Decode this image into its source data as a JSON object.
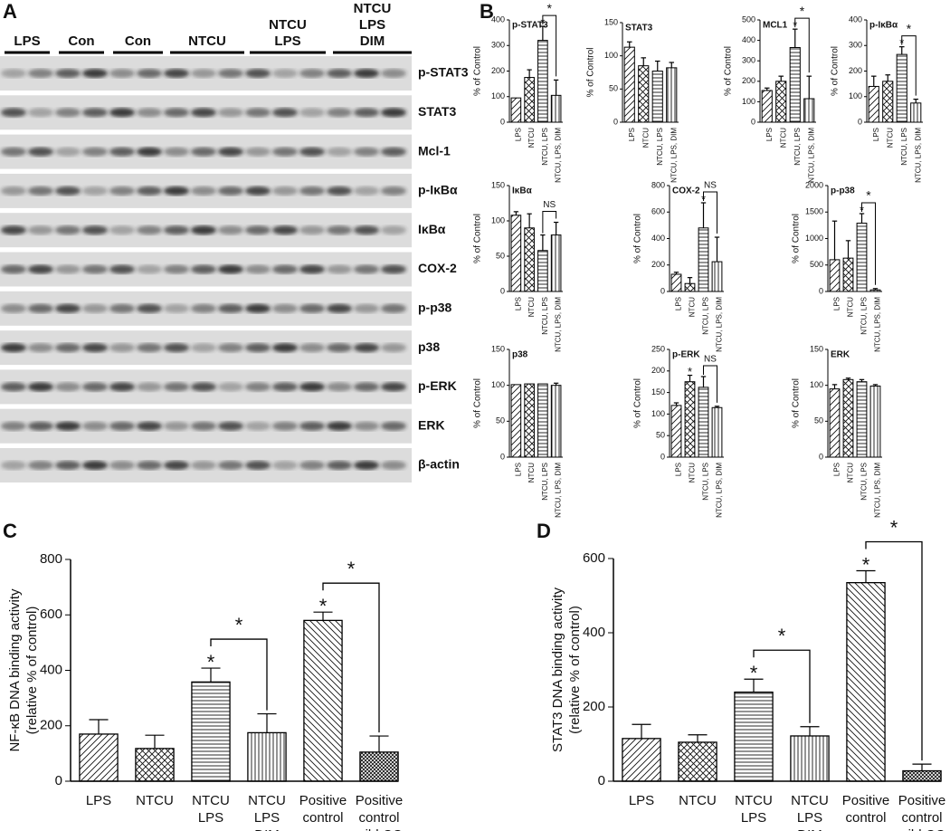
{
  "panel_labels": [
    "A",
    "B",
    "C",
    "D"
  ],
  "blot": {
    "groups": [
      [
        "LPS"
      ],
      [
        "Con"
      ],
      [
        "Con"
      ],
      [
        "NTCU"
      ],
      [
        "NTCU",
        "LPS"
      ],
      [
        "NTCU",
        "LPS",
        "DIM"
      ]
    ],
    "rows": [
      "p-STAT3",
      "STAT3",
      "Mcl-1",
      "p-IκBα",
      "IκBα",
      "COX-2",
      "p-p38",
      "p38",
      "p-ERK",
      "ERK",
      "β-actin"
    ]
  },
  "chart_data": [
    {
      "type": "bar",
      "title": "p-STAT3",
      "ylabel": "% of Control",
      "categories": [
        "LPS",
        "NTCU",
        "NTCU, LPS",
        "NTCU, LPS, DIM"
      ],
      "patterns": [
        "diagonal",
        "crosshatch",
        "horizontal",
        "vertical"
      ],
      "values": [
        95,
        175,
        320,
        105
      ],
      "errors": [
        null,
        30,
        55,
        60
      ],
      "star_labels": [
        null,
        null,
        "*",
        null
      ],
      "brackets": [
        {
          "from": 2,
          "to": 3,
          "label": "*"
        }
      ],
      "ylim": [
        0,
        400
      ],
      "yticks": [
        0,
        100,
        200,
        300,
        400
      ]
    },
    {
      "type": "bar",
      "title": "STAT3",
      "ylabel": "% of Control",
      "categories": [
        "LPS",
        "NTCU",
        "NTCU, LPS",
        "NTCU, LPS, DIM"
      ],
      "patterns": [
        "diagonal",
        "crosshatch",
        "horizontal",
        "vertical"
      ],
      "values": [
        113,
        85,
        77,
        82
      ],
      "errors": [
        8,
        12,
        15,
        8
      ],
      "star_labels": [
        null,
        null,
        null,
        null
      ],
      "brackets": [],
      "ylim": [
        0,
        150
      ],
      "yticks": [
        0,
        50,
        100,
        150
      ]
    },
    {
      "type": "bar",
      "title": "MCL1",
      "ylabel": "% of Control",
      "categories": [
        "LPS",
        "NTCU",
        "NTCU, LPS",
        "NTCU, LPS, DIM"
      ],
      "patterns": [
        "diagonal",
        "crosshatch",
        "horizontal",
        "vertical"
      ],
      "values": [
        155,
        200,
        365,
        115
      ],
      "errors": [
        12,
        25,
        90,
        110
      ],
      "star_labels": [
        null,
        null,
        "*",
        null
      ],
      "brackets": [
        {
          "from": 2,
          "to": 3,
          "label": "*"
        }
      ],
      "ylim": [
        0,
        500
      ],
      "yticks": [
        0,
        100,
        200,
        300,
        400,
        500
      ]
    },
    {
      "type": "bar",
      "title": "p-IκBα",
      "ylabel": "% of Control",
      "categories": [
        "LPS",
        "NTCU",
        "NTCU, LPS",
        "NTCU, LPS, DIM"
      ],
      "patterns": [
        "diagonal",
        "crosshatch",
        "horizontal",
        "vertical"
      ],
      "values": [
        140,
        160,
        265,
        75
      ],
      "errors": [
        40,
        25,
        30,
        15
      ],
      "star_labels": [
        null,
        null,
        "*",
        null
      ],
      "brackets": [
        {
          "from": 2,
          "to": 3,
          "label": "*"
        }
      ],
      "ylim": [
        0,
        400
      ],
      "yticks": [
        0,
        100,
        200,
        300,
        400
      ]
    },
    {
      "type": "bar",
      "title": "IκBα",
      "ylabel": "% of Control",
      "categories": [
        "LPS",
        "NTCU",
        "NTCU, LPS",
        "NTCU, LPS, DIM"
      ],
      "patterns": [
        "diagonal",
        "crosshatch",
        "horizontal",
        "vertical"
      ],
      "values": [
        108,
        90,
        58,
        80
      ],
      "errors": [
        5,
        20,
        22,
        18
      ],
      "star_labels": [
        null,
        null,
        null,
        null
      ],
      "brackets": [
        {
          "from": 2,
          "to": 3,
          "label": "NS"
        }
      ],
      "ylim": [
        0,
        150
      ],
      "yticks": [
        0,
        50,
        100,
        150
      ]
    },
    {
      "type": "bar",
      "title": "COX-2",
      "ylabel": "% of Control",
      "categories": [
        "LPS",
        "NTCU",
        "NTCU, LPS",
        "NTCU, LPS, DIM"
      ],
      "patterns": [
        "diagonal",
        "crosshatch",
        "horizontal",
        "vertical"
      ],
      "values": [
        130,
        60,
        480,
        225
      ],
      "errors": [
        15,
        45,
        190,
        185
      ],
      "star_labels": [
        null,
        null,
        "*",
        null
      ],
      "brackets": [
        {
          "from": 2,
          "to": 3,
          "label": "NS"
        }
      ],
      "ylim": [
        0,
        800
      ],
      "yticks": [
        0,
        200,
        400,
        600,
        800
      ]
    },
    {
      "type": "bar",
      "title": "p-p38",
      "ylabel": "% of Control",
      "categories": [
        "LPS",
        "NTCU",
        "NTCU, LPS",
        "NTCU, LPS, DIM"
      ],
      "patterns": [
        "diagonal",
        "crosshatch",
        "horizontal",
        "vertical"
      ],
      "values": [
        600,
        630,
        1290,
        30
      ],
      "errors": [
        730,
        330,
        180,
        25
      ],
      "star_labels": [
        null,
        null,
        "*",
        null
      ],
      "brackets": [
        {
          "from": 2,
          "to": 3,
          "label": "*"
        }
      ],
      "ylim": [
        0,
        2000
      ],
      "yticks": [
        0,
        500,
        1000,
        1500,
        2000
      ]
    },
    {
      "type": "bar",
      "title": "p38",
      "ylabel": "% of Control",
      "categories": [
        "LPS",
        "NTCU",
        "NTCU, LPS",
        "NTCU, LPS, DIM"
      ],
      "patterns": [
        "diagonal",
        "crosshatch",
        "horizontal",
        "vertical"
      ],
      "values": [
        101,
        102,
        102,
        100
      ],
      "errors": [
        null,
        null,
        null,
        3
      ],
      "star_labels": [
        null,
        null,
        null,
        null
      ],
      "brackets": [],
      "ylim": [
        0,
        150
      ],
      "yticks": [
        0,
        50,
        100,
        150
      ]
    },
    {
      "type": "bar",
      "title": "p-ERK",
      "ylabel": "% of Control",
      "categories": [
        "LPS",
        "NTCU",
        "NTCU, LPS",
        "NTCU, LPS, DIM"
      ],
      "patterns": [
        "diagonal",
        "crosshatch",
        "horizontal",
        "vertical"
      ],
      "values": [
        120,
        175,
        162,
        115
      ],
      "errors": [
        6,
        15,
        25,
        3
      ],
      "star_labels": [
        null,
        "*",
        null,
        null
      ],
      "brackets": [
        {
          "from": 2,
          "to": 3,
          "label": "NS"
        }
      ],
      "ylim": [
        0,
        250
      ],
      "yticks": [
        0,
        50,
        100,
        150,
        200,
        250
      ]
    },
    {
      "type": "bar",
      "title": "ERK",
      "ylabel": "% of Control",
      "categories": [
        "LPS",
        "NTCU",
        "NTCU, LPS",
        "NTCU, LPS, DIM"
      ],
      "patterns": [
        "diagonal",
        "crosshatch",
        "horizontal",
        "vertical"
      ],
      "values": [
        95,
        108,
        105,
        99
      ],
      "errors": [
        6,
        2,
        3,
        2
      ],
      "star_labels": [
        null,
        null,
        null,
        null
      ],
      "brackets": [],
      "ylim": [
        0,
        150
      ],
      "yticks": [
        0,
        50,
        100,
        150
      ]
    },
    {
      "type": "bar",
      "ylabel": [
        "NF-κB DNA binding activity",
        "(relative % of control)"
      ],
      "categories": [
        [
          "LPS"
        ],
        [
          "NTCU"
        ],
        [
          "NTCU",
          "LPS"
        ],
        [
          "NTCU",
          "LPS",
          "DIM"
        ],
        [
          "Positive",
          "control"
        ],
        [
          "Positive",
          "control",
          "wild CO"
        ]
      ],
      "patterns": [
        "diagonal",
        "crosshatch",
        "horizontal",
        "vertical",
        "backdiagonal",
        "dense-crosshatch"
      ],
      "values": [
        170,
        118,
        358,
        175,
        580,
        105
      ],
      "errors": [
        52,
        48,
        50,
        68,
        30,
        58
      ],
      "star_labels": [
        null,
        null,
        "*",
        null,
        "*",
        null
      ],
      "brackets": [
        {
          "from": 2,
          "to": 3,
          "label": "*"
        },
        {
          "from": 4,
          "to": 5,
          "label": "*"
        }
      ],
      "ylim": [
        0,
        800
      ],
      "yticks": [
        0,
        200,
        400,
        600,
        800
      ]
    },
    {
      "type": "bar",
      "ylabel": [
        "STAT3 DNA binding activity",
        "(relative % of control)"
      ],
      "categories": [
        [
          "LPS"
        ],
        [
          "NTCU"
        ],
        [
          "NTCU",
          "LPS"
        ],
        [
          "NTCU",
          "LPS",
          "DIM"
        ],
        [
          "Positive",
          "control"
        ],
        [
          "Positive",
          "control",
          "wild CO"
        ]
      ],
      "patterns": [
        "diagonal",
        "crosshatch",
        "horizontal",
        "vertical",
        "backdiagonal",
        "dense-crosshatch"
      ],
      "values": [
        115,
        105,
        240,
        122,
        535,
        28
      ],
      "errors": [
        38,
        20,
        35,
        25,
        32,
        18
      ],
      "star_labels": [
        null,
        null,
        "*",
        null,
        "*",
        null
      ],
      "brackets": [
        {
          "from": 2,
          "to": 3,
          "label": "*"
        },
        {
          "from": 4,
          "to": 5,
          "label": "*"
        }
      ],
      "ylim": [
        0,
        600
      ],
      "yticks": [
        0,
        200,
        400,
        600
      ]
    }
  ]
}
